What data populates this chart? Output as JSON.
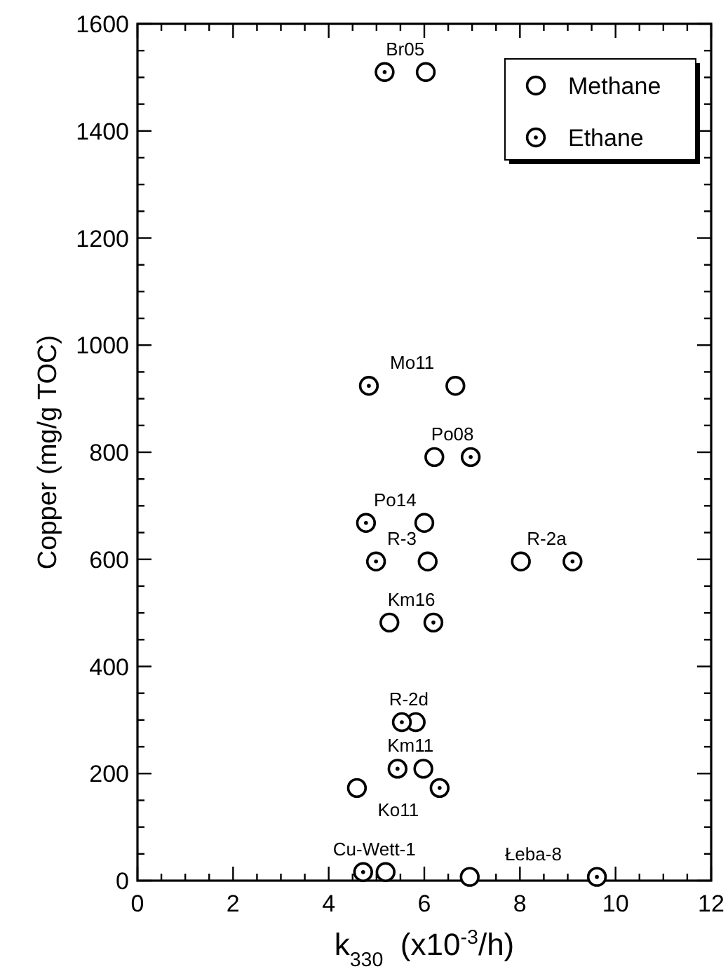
{
  "chart_data": {
    "type": "scatter",
    "xlabel": "k$_{330}$  (x10$^{-3}$/h)",
    "ylabel": "Copper (mg/g TOC)",
    "xlim": [
      0,
      12
    ],
    "ylim": [
      0,
      1600
    ],
    "xticks": [
      0,
      {
        "value": 0.5,
        "label": null
      },
      2,
      {
        "value": 1,
        "label": null
      },
      {
        "value": 1.5,
        "label": null
      },
      {
        "value": 2.5,
        "label": null
      },
      {
        "value": 3,
        "label": null
      },
      {
        "value": 3.5,
        "label": null
      },
      4,
      {
        "value": 4.5,
        "label": null
      },
      {
        "value": 5,
        "label": null
      },
      {
        "value": 5.5,
        "label": null
      },
      6,
      {
        "value": 6.5,
        "label": null
      },
      {
        "value": 7,
        "label": null
      },
      {
        "value": 7.5,
        "label": null
      },
      8,
      {
        "value": 8.5,
        "label": null
      },
      {
        "value": 9,
        "label": null
      },
      {
        "value": 9.5,
        "label": null
      },
      10,
      {
        "value": 10.5,
        "label": null
      },
      {
        "value": 11,
        "label": null
      },
      {
        "value": 11.5,
        "label": null
      },
      12
    ],
    "yticks": [
      0,
      {
        "value": 50,
        "label": null
      },
      {
        "value": 100,
        "label": null
      },
      {
        "value": 150,
        "label": null
      },
      200,
      {
        "value": 250,
        "label": null
      },
      {
        "value": 300,
        "label": null
      },
      {
        "value": 350,
        "label": null
      },
      400,
      {
        "value": 450,
        "label": null
      },
      {
        "value": 500,
        "label": null
      },
      {
        "value": 550,
        "label": null
      },
      600,
      {
        "value": 650,
        "label": null
      },
      {
        "value": 700,
        "label": null
      },
      {
        "value": 750,
        "label": null
      },
      800,
      {
        "value": 850,
        "label": null
      },
      {
        "value": 900,
        "label": null
      },
      {
        "value": 950,
        "label": null
      },
      1000,
      {
        "value": 1050,
        "label": null
      },
      {
        "value": 1100,
        "label": null
      },
      {
        "value": 1150,
        "label": null
      },
      1200,
      {
        "value": 1250,
        "label": null
      },
      {
        "value": 1300,
        "label": null
      },
      {
        "value": 1350,
        "label": null
      },
      1400,
      {
        "value": 1450,
        "label": null
      },
      {
        "value": 1500,
        "label": null
      },
      {
        "value": 1550,
        "label": null
      },
      1600
    ],
    "grid": false,
    "legend": "top right",
    "marker": "circle",
    "series": [
      {
        "name": "Methane",
        "color": "#000000",
        "x": [
          6.03,
          6.65,
          6.21,
          6.0,
          6.07,
          8.02,
          5.27,
          5.82,
          5.98,
          4.59,
          5.19,
          6.95
        ],
        "values": [
          1510,
          924,
          791,
          668,
          596,
          596,
          482,
          296,
          209,
          173,
          16,
          7
        ]
      },
      {
        "name": "Ethane",
        "color": "#000000",
        "x": [
          5.17,
          4.84,
          6.97,
          4.78,
          4.99,
          9.1,
          6.19,
          5.53,
          5.44,
          6.32,
          4.72,
          9.61
        ],
        "values": [
          1510,
          924,
          791,
          668,
          596,
          596,
          482,
          296,
          209,
          173,
          16,
          7
        ]
      }
    ],
    "annotations": [
      "Br05",
      "Mo11",
      "Po08",
      "Po14",
      "R-3",
      "R-2a",
      "Km16",
      "R-2d",
      "Km11",
      "Ko11",
      "Cu-Wett-1",
      "Łeba-8"
    ]
  }
}
